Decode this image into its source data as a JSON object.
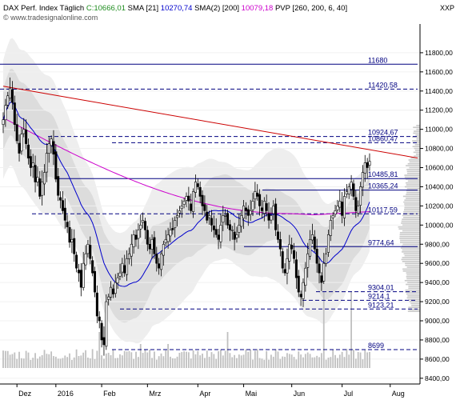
{
  "header": {
    "line1": [
      {
        "text": "DAX Perf. Index  Täglich",
        "color": "#000000"
      },
      {
        "text": " C:10666,01",
        "color": "#1e8c1e"
      },
      {
        "text": "  SMA [21]",
        "color": "#000000"
      },
      {
        "text": " 10270,74",
        "color": "#0000cc"
      },
      {
        "text": "  SMA(2) [200]",
        "color": "#000000"
      },
      {
        "text": " 10079,18",
        "color": "#cc00cc"
      },
      {
        "text": "  PVP [260, 200, 6, 40]",
        "color": "#000000"
      }
    ],
    "line2": "© www.tradesignalonline.com",
    "corner": "XXP"
  },
  "chart_data": {
    "type": "candlestick",
    "title": "DAX Perf. Index  Täglich",
    "ylim": [
      8340,
      12100
    ],
    "y_ticks": [
      8400,
      8600,
      8800,
      9000,
      9200,
      9400,
      9600,
      9800,
      10000,
      10200,
      10400,
      10600,
      10800,
      11000,
      11200,
      11400,
      11600,
      11800
    ],
    "y_tick_labels": [
      "8400,00",
      "8600,00",
      "8800,00",
      "9000,00",
      "9200,00",
      "9400,00",
      "9600,00",
      "9800,00",
      "10000,00",
      "10200,00",
      "10400,00",
      "10600,00",
      "10800,00",
      "11000,00",
      "11200,00",
      "11400,00",
      "11600,00",
      "11800,00"
    ],
    "x_labels": [
      {
        "label": "Dez",
        "index": 6
      },
      {
        "label": "2016",
        "index": 23
      },
      {
        "label": "Feb",
        "index": 43
      },
      {
        "label": "Mrz",
        "index": 63
      },
      {
        "label": "Apr",
        "index": 85
      },
      {
        "label": "Mai",
        "index": 105
      },
      {
        "label": "Jun",
        "index": 126
      },
      {
        "label": "Jul",
        "index": 148
      },
      {
        "label": "Aug",
        "index": 169
      }
    ],
    "last_close": 10666.01,
    "sma21_last": 10270.74,
    "sma200_last": 10079.18,
    "levels": [
      {
        "value": 11680,
        "label": "11680",
        "style": "solid"
      },
      {
        "value": 11420.58,
        "label": "11420,58",
        "style": "dashed"
      },
      {
        "value": 10924.67,
        "label": "10924,67",
        "style": "dashed"
      },
      {
        "value": 10860.47,
        "label": "10860,47",
        "style": "dashed"
      },
      {
        "value": 10485.81,
        "label": "10485,81",
        "style": "solid"
      },
      {
        "value": 10365.24,
        "label": "10365,24",
        "style": "solid"
      },
      {
        "value": 10117.59,
        "label": "10117,59",
        "style": "dashed"
      },
      {
        "value": 9774.64,
        "label": "9774,64",
        "style": "solid"
      },
      {
        "value": 9304.01,
        "label": "9304,01",
        "style": "dashed"
      },
      {
        "value": 9214.1,
        "label": "9214,1",
        "style": "dashed"
      },
      {
        "value": 9123.21,
        "label": "9123,21",
        "style": "dashed"
      },
      {
        "value": 8699,
        "label": "8699",
        "style": "dashed"
      }
    ],
    "trendline": {
      "start": {
        "index": 0,
        "value": 11450
      },
      "end": {
        "index": 179,
        "value": 10700
      }
    },
    "closes": [
      11100,
      11250,
      11350,
      11430,
      11280,
      11050,
      10880,
      10750,
      10950,
      11000,
      10850,
      10700,
      10600,
      10650,
      10450,
      10500,
      10300,
      10450,
      10550,
      10750,
      10850,
      10900,
      10740,
      10480,
      10310,
      10260,
      10150,
      10050,
      9980,
      9820,
      9850,
      9700,
      9550,
      9500,
      9350,
      9600,
      9700,
      9800,
      9650,
      9500,
      9300,
      9050,
      9000,
      8800,
      8750,
      9200,
      9250,
      9350,
      9280,
      9400,
      9450,
      9500,
      9600,
      9500,
      9650,
      9700,
      9800,
      9900,
      9850,
      9950,
      10000,
      10050,
      9950,
      9800,
      9750,
      9850,
      9700,
      9600,
      9550,
      9700,
      9800,
      9850,
      9900,
      9950,
      9950,
      10050,
      10100,
      10150,
      10200,
      10250,
      10300,
      10250,
      10150,
      10350,
      10450,
      10400,
      10300,
      10200,
      10150,
      10050,
      10100,
      10000,
      9950,
      9900,
      9850,
      10000,
      10100,
      10100,
      10000,
      9950,
      9950,
      9850,
      9900,
      10000,
      10100,
      10200,
      10150,
      10100,
      10150,
      10250,
      10350,
      10300,
      10200,
      10150,
      10250,
      10150,
      10050,
      10100,
      10200,
      9950,
      9850,
      9750,
      9550,
      9500,
      9650,
      9800,
      9750,
      9650,
      9450,
      9300,
      9250,
      9400,
      9550,
      9700,
      9850,
      9900,
      9750,
      9600,
      9500,
      9400,
      9600,
      9700,
      9900,
      10050,
      10100,
      10150,
      10200,
      10250,
      10100,
      10300,
      10350,
      10400,
      10450,
      10300,
      10150,
      10200,
      10400,
      10550,
      10650,
      10600,
      10666
    ]
  }
}
